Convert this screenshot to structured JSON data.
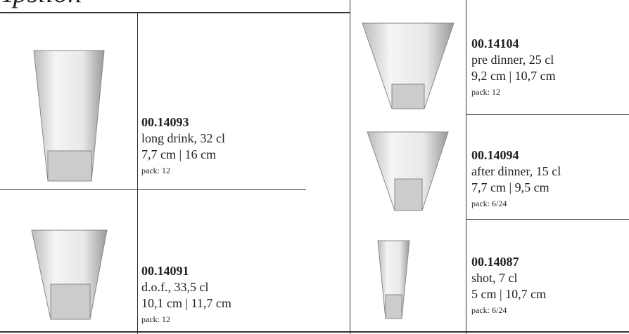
{
  "header": {
    "title": "Ypsilon"
  },
  "products": [
    {
      "code": "00.14093",
      "name": "long drink, 32 cl",
      "dimensions": "7,7 cm | 16 cm",
      "pack": "pack: 12"
    },
    {
      "code": "00.14091",
      "name": "d.o.f., 33,5 cl",
      "dimensions": "10,1 cm | 11,7 cm",
      "pack": "pack: 12"
    },
    {
      "code": "00.14104",
      "name": "pre dinner, 25 cl",
      "dimensions": "9,2 cm | 10,7 cm",
      "pack": "pack: 12"
    },
    {
      "code": "00.14094",
      "name": "after dinner, 15 cl",
      "dimensions": "7,7 cm | 9,5 cm",
      "pack": "pack: 6/24"
    },
    {
      "code": "00.14087",
      "name": "shot, 7 cl",
      "dimensions": "5 cm | 10,7 cm",
      "pack": "pack: 6/24"
    }
  ]
}
